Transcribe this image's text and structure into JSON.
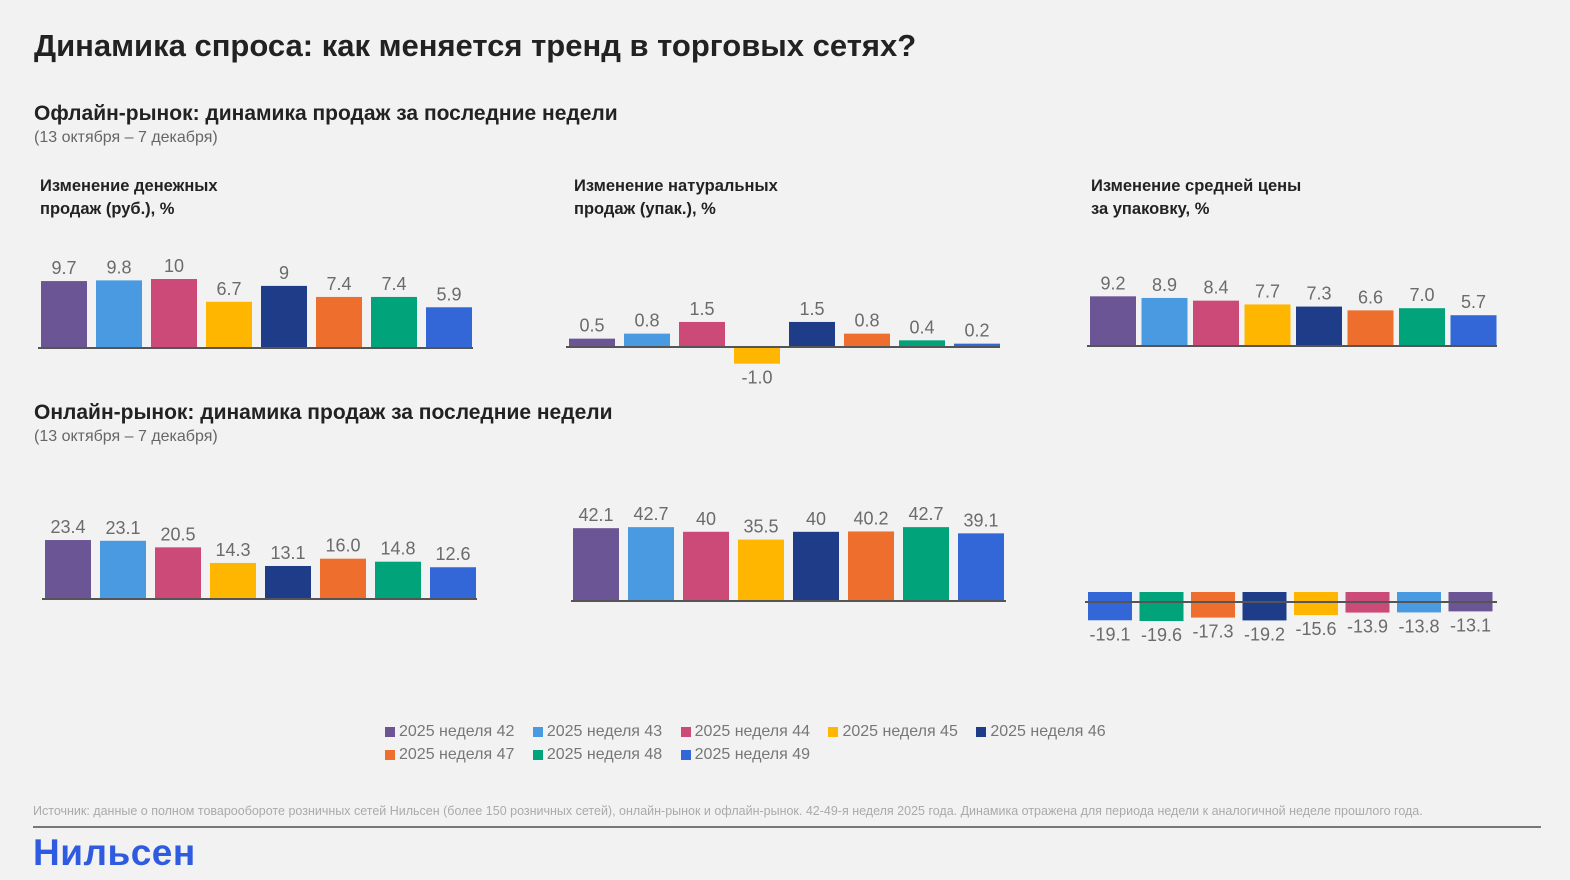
{
  "title": "Динамика спроса: как меняется тренд в торговых сетях?",
  "offline": {
    "heading": "Офлайн-рынок: динамика продаж за последние недели",
    "period": "(13 октября – 7 декабря)"
  },
  "online": {
    "heading": "Онлайн-рынок: динамика продаж за последние недели",
    "period": "(13 октября – 7 декабря)"
  },
  "colors": {
    "w42": "#6B5595",
    "w43": "#4A9AE1",
    "w44": "#CC4A78",
    "w45": "#FFB600",
    "w46": "#1F3C88",
    "w47": "#EE6F2D",
    "w48": "#00A37A",
    "w49": "#3366D6"
  },
  "legend": [
    "2025 неделя 42",
    "2025 неделя 43",
    "2025 неделя 44",
    "2025 неделя 45",
    "2025 неделя 46",
    "2025 неделя 47",
    "2025 неделя 48",
    "2025 неделя 49"
  ],
  "chart_data": [
    {
      "type": "bar",
      "title": "Изменение денежных\nпродаж (руб.), %",
      "market": "offline",
      "categories": [
        "2025 неделя 42",
        "2025 неделя 43",
        "2025 неделя 44",
        "2025 неделя 45",
        "2025 неделя 46",
        "2025 неделя 47",
        "2025 неделя 48",
        "2025 неделя 49"
      ],
      "values": [
        9.7,
        9.8,
        10,
        6.7,
        9,
        7.4,
        7.4,
        5.9
      ],
      "labels": [
        "9.7",
        "9.8",
        "10",
        "6.7",
        "9",
        "7.4",
        "7.4",
        "5.9"
      ]
    },
    {
      "type": "bar",
      "title": "Изменение натуральных\nпродаж (упак.), %",
      "market": "offline",
      "categories": [
        "2025 неделя 42",
        "2025 неделя 43",
        "2025 неделя 44",
        "2025 неделя 45",
        "2025 неделя 46",
        "2025 неделя 47",
        "2025 неделя 48",
        "2025 неделя 49"
      ],
      "values": [
        0.5,
        0.8,
        1.5,
        -1.0,
        1.5,
        0.8,
        0.4,
        0.2
      ],
      "labels": [
        "0.5",
        "0.8",
        "1.5",
        "-1.0",
        "1.5",
        "0.8",
        "0.4",
        "0.2"
      ]
    },
    {
      "type": "bar",
      "title": "Изменение средней цены\nза упаковку, %",
      "market": "offline",
      "categories": [
        "2025 неделя 42",
        "2025 неделя 43",
        "2025 неделя 44",
        "2025 неделя 45",
        "2025 неделя 46",
        "2025 неделя 47",
        "2025 неделя 48",
        "2025 неделя 49"
      ],
      "values": [
        9.2,
        8.9,
        8.4,
        7.7,
        7.3,
        6.6,
        7.0,
        5.7
      ],
      "labels": [
        "9.2",
        "8.9",
        "8.4",
        "7.7",
        "7.3",
        "6.6",
        "7.0",
        "5.7"
      ]
    },
    {
      "type": "bar",
      "title": "",
      "market": "online",
      "categories": [
        "2025 неделя 42",
        "2025 неделя 43",
        "2025 неделя 44",
        "2025 неделя 45",
        "2025 неделя 46",
        "2025 неделя 47",
        "2025 неделя 48",
        "2025 неделя 49"
      ],
      "values": [
        23.4,
        23.1,
        20.5,
        14.3,
        13.1,
        16.0,
        14.8,
        12.6
      ],
      "labels": [
        "23.4",
        "23.1",
        "20.5",
        "14.3",
        "13.1",
        "16.0",
        "14.8",
        "12.6"
      ]
    },
    {
      "type": "bar",
      "title": "",
      "market": "online",
      "categories": [
        "2025 неделя 42",
        "2025 неделя 43",
        "2025 неделя 44",
        "2025 неделя 45",
        "2025 неделя 46",
        "2025 неделя 47",
        "2025 неделя 48",
        "2025 неделя 49"
      ],
      "values": [
        42.1,
        42.7,
        40,
        35.5,
        40,
        40.2,
        42.7,
        39.1
      ],
      "labels": [
        "42.1",
        "42.7",
        "40",
        "35.5",
        "40",
        "40.2",
        "42.7",
        "39.1"
      ]
    },
    {
      "type": "bar",
      "title": "",
      "market": "online",
      "categories": [
        "2025 неделя 49",
        "2025 неделя 48",
        "2025 неделя 47",
        "2025 неделя 46",
        "2025 неделя 45",
        "2025 неделя 44",
        "2025 неделя 43",
        "2025 неделя 42"
      ],
      "values": [
        -19.1,
        -19.6,
        -17.3,
        -19.2,
        -15.6,
        -13.9,
        -13.8,
        -13.1
      ],
      "labels": [
        "-19.1",
        "-19.6",
        "-17.3",
        "-19.2",
        "-15.6",
        "-13.9",
        "-13.8",
        "-13.1"
      ]
    }
  ],
  "source": "Источник: данные о полном товарообороте розничных сетей Нильсен (более 150 розничных сетей), онлайн-рынок и офлайн-рынок. 42-49-я неделя 2025 года. Динамика отражена для периода недели к аналогичной неделе прошлого года.",
  "logo": "Нильсен"
}
